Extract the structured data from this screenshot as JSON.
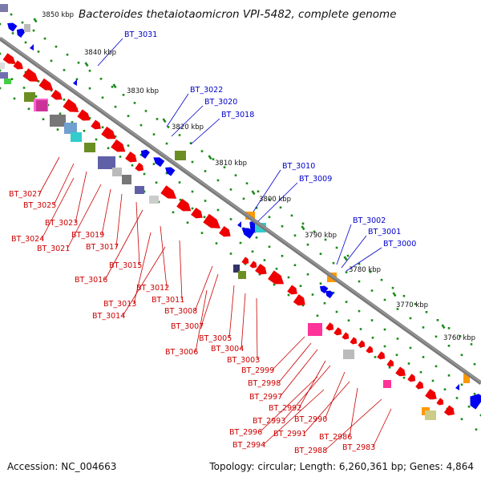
{
  "title": "Bacteroides thetaiotaomicron VPI-5482, complete genome",
  "footer": {
    "accession": "Accession: NC_004663",
    "summary": "Topology: circular; Length: 6,260,361 bp; Genes: 4,864"
  },
  "colors": {
    "backbone": "#808080",
    "tick": "#1a8a1a",
    "forward_label": "#0000cc",
    "reverse_label": "#cc0000",
    "forward_gene": "#0000ee",
    "reverse_gene": "#ee0000"
  },
  "tick_labels": [
    "3850 kbp",
    "3840 kbp",
    "3830 kbp",
    "3820 kbp",
    "3810 kbp",
    "3800 kbp",
    "3790 kbp",
    "3780 kbp",
    "3770 kbp",
    "3760 kbp"
  ],
  "forward_labels": [
    "BT_3031",
    "BT_3022",
    "BT_3020",
    "BT_3018",
    "BT_3010",
    "BT_3009",
    "BT_3002",
    "BT_3001",
    "BT_3000"
  ],
  "reverse_labels": [
    "BT_3027",
    "BT_3025",
    "BT_3023",
    "BT_3024",
    "BT_3021",
    "BT_3019",
    "BT_3017",
    "BT_3015",
    "BT_3016",
    "BT_3012",
    "BT_3013",
    "BT_3011",
    "BT_3014",
    "BT_3008",
    "BT_3007",
    "BT_3005",
    "BT_3006",
    "BT_3004",
    "BT_3003",
    "BT_2999",
    "BT_2998",
    "BT_2997",
    "BT_2992",
    "BT_2993",
    "BT_2990",
    "BT_2996",
    "BT_2991",
    "BT_2986",
    "BT_2994",
    "BT_2988",
    "BT_2983"
  ]
}
